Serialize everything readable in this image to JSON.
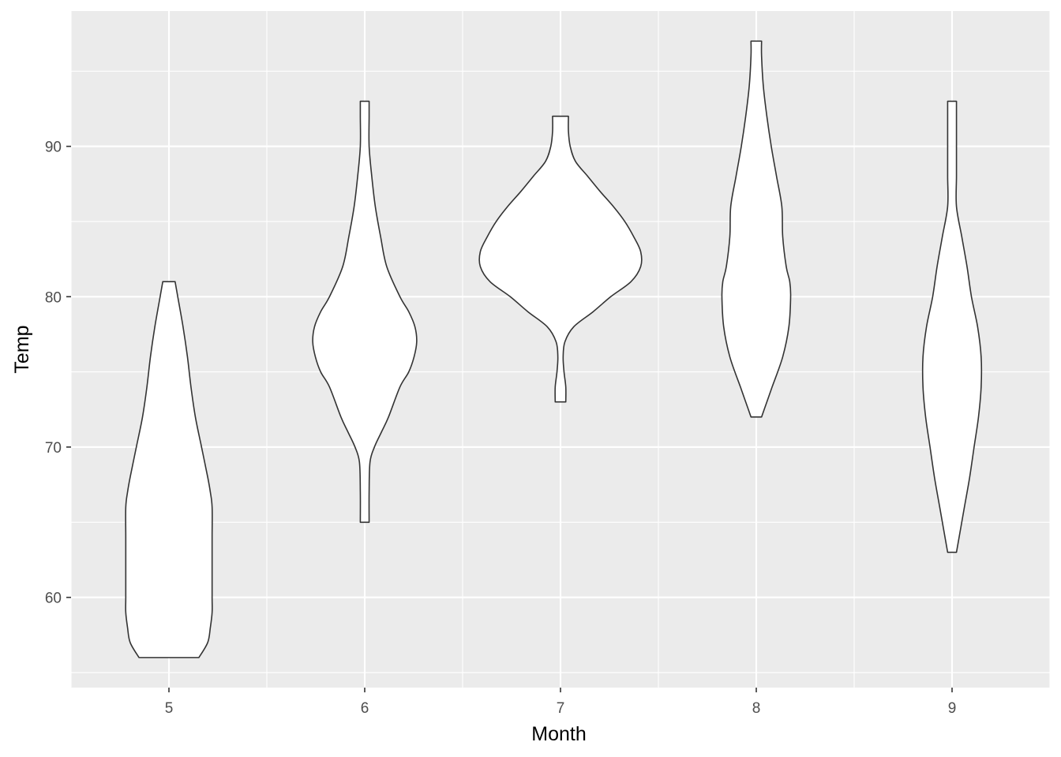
{
  "chart_data": {
    "type": "violin",
    "title": "",
    "xlabel": "Month",
    "ylabel": "Temp",
    "categories": [
      "5",
      "6",
      "7",
      "8",
      "9"
    ],
    "x_ticks": [
      "5",
      "6",
      "7",
      "8",
      "9"
    ],
    "y_ticks": [
      60,
      70,
      80,
      90
    ],
    "ylim": [
      54,
      99
    ],
    "grid": true,
    "legend": "none",
    "colors": {
      "panel_background": "#EBEBEB",
      "grid_major": "#FFFFFF",
      "violin_fill": "#FFFFFF",
      "violin_outline": "#333333",
      "tick_text": "#4D4D4D"
    },
    "violins": [
      {
        "category": "5",
        "min": 56,
        "max": 81,
        "profile": [
          [
            56,
            0.34
          ],
          [
            57,
            0.44
          ],
          [
            58,
            0.47
          ],
          [
            59,
            0.49
          ],
          [
            60,
            0.49
          ],
          [
            62,
            0.49
          ],
          [
            64,
            0.49
          ],
          [
            66,
            0.49
          ],
          [
            67,
            0.47
          ],
          [
            68,
            0.44
          ],
          [
            70,
            0.37
          ],
          [
            72,
            0.3
          ],
          [
            74,
            0.25
          ],
          [
            76,
            0.21
          ],
          [
            78,
            0.16
          ],
          [
            80,
            0.1
          ],
          [
            81,
            0.07
          ]
        ]
      },
      {
        "category": "6",
        "min": 65,
        "max": 93,
        "profile": [
          [
            65,
            0.05
          ],
          [
            67,
            0.05
          ],
          [
            69,
            0.06
          ],
          [
            70,
            0.11
          ],
          [
            71,
            0.19
          ],
          [
            72,
            0.27
          ],
          [
            74,
            0.4
          ],
          [
            75,
            0.5
          ],
          [
            76,
            0.56
          ],
          [
            77,
            0.59
          ],
          [
            78,
            0.57
          ],
          [
            79,
            0.5
          ],
          [
            80,
            0.4
          ],
          [
            82,
            0.25
          ],
          [
            84,
            0.18
          ],
          [
            86,
            0.12
          ],
          [
            88,
            0.08
          ],
          [
            90,
            0.05
          ],
          [
            92,
            0.05
          ],
          [
            93,
            0.05
          ]
        ]
      },
      {
        "category": "7",
        "min": 73,
        "max": 92,
        "profile": [
          [
            73,
            0.06
          ],
          [
            74,
            0.06
          ],
          [
            75,
            0.04
          ],
          [
            76,
            0.03
          ],
          [
            77,
            0.05
          ],
          [
            78,
            0.15
          ],
          [
            79,
            0.37
          ],
          [
            80,
            0.57
          ],
          [
            81,
            0.8
          ],
          [
            82,
            0.91
          ],
          [
            83,
            0.91
          ],
          [
            84,
            0.83
          ],
          [
            85,
            0.73
          ],
          [
            86,
            0.6
          ],
          [
            87,
            0.45
          ],
          [
            88,
            0.31
          ],
          [
            89,
            0.17
          ],
          [
            90,
            0.11
          ],
          [
            91,
            0.09
          ],
          [
            92,
            0.09
          ]
        ]
      },
      {
        "category": "8",
        "min": 72,
        "max": 97,
        "profile": [
          [
            72,
            0.06
          ],
          [
            73,
            0.12
          ],
          [
            74,
            0.18
          ],
          [
            76,
            0.3
          ],
          [
            78,
            0.37
          ],
          [
            80,
            0.39
          ],
          [
            81,
            0.38
          ],
          [
            82,
            0.34
          ],
          [
            84,
            0.3
          ],
          [
            86,
            0.29
          ],
          [
            88,
            0.23
          ],
          [
            90,
            0.17
          ],
          [
            92,
            0.12
          ],
          [
            94,
            0.08
          ],
          [
            96,
            0.06
          ],
          [
            97,
            0.06
          ]
        ]
      },
      {
        "category": "9",
        "min": 63,
        "max": 93,
        "profile": [
          [
            63,
            0.05
          ],
          [
            64,
            0.08
          ],
          [
            66,
            0.14
          ],
          [
            68,
            0.2
          ],
          [
            70,
            0.25
          ],
          [
            72,
            0.3
          ],
          [
            74,
            0.33
          ],
          [
            76,
            0.33
          ],
          [
            78,
            0.29
          ],
          [
            80,
            0.22
          ],
          [
            82,
            0.17
          ],
          [
            84,
            0.11
          ],
          [
            86,
            0.05
          ],
          [
            88,
            0.05
          ],
          [
            90,
            0.05
          ],
          [
            93,
            0.05
          ]
        ]
      }
    ]
  }
}
